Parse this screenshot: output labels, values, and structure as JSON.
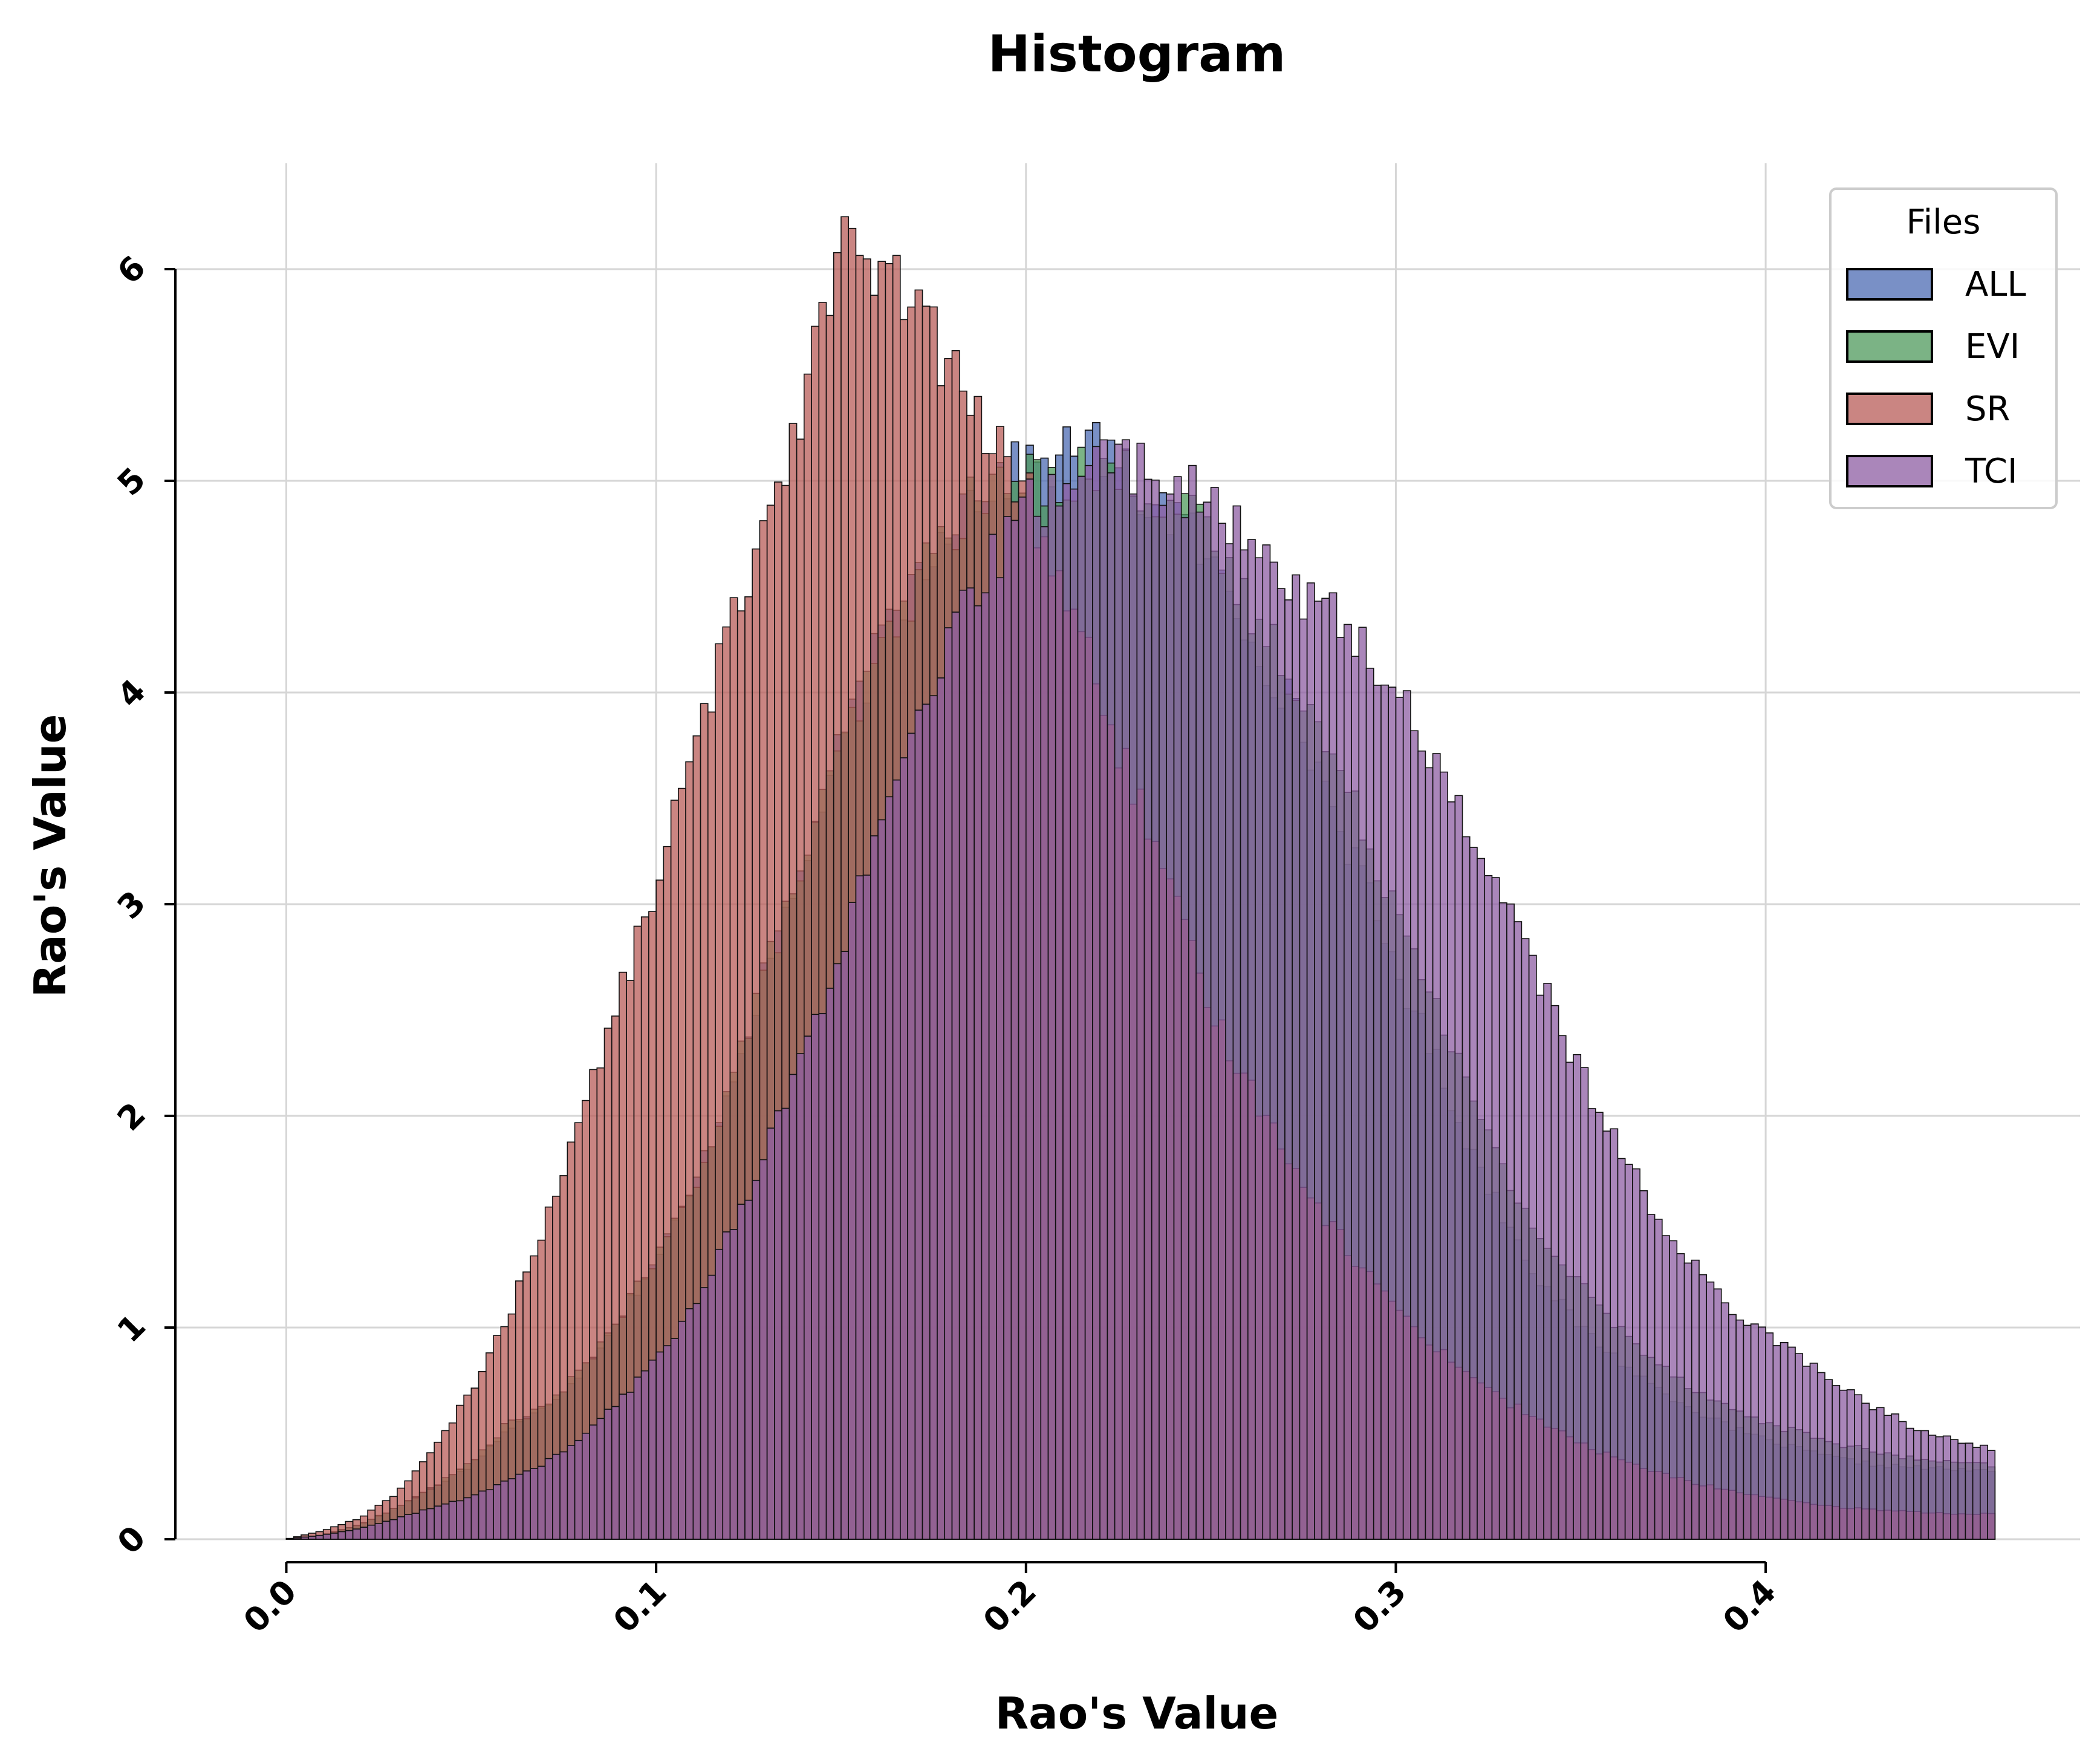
{
  "chart_data": {
    "type": "bar",
    "title": "Histogram",
    "xlabel": "Rao's Value",
    "ylabel": "Rao's Value",
    "xlim": [
      -0.03,
      0.485
    ],
    "ylim": [
      0,
      6.5
    ],
    "xticks": [
      0.0,
      0.1,
      0.2,
      0.3,
      0.4
    ],
    "xtick_labels": [
      "0.0",
      "0.1",
      "0.2",
      "0.3",
      "0.4"
    ],
    "yticks": [
      0,
      1,
      2,
      3,
      4,
      5,
      6
    ],
    "ytick_labels": [
      "0",
      "1",
      "2",
      "3",
      "4",
      "5",
      "6"
    ],
    "grid": true,
    "legend": {
      "title": "Files",
      "placement": "upper right",
      "entries": [
        "ALL",
        "EVI",
        "SR",
        "TCI"
      ]
    },
    "bin_width": 0.002,
    "x_start": 0.0,
    "x_end": 0.462,
    "series": [
      {
        "name": "ALL",
        "color": "#4c6bb3",
        "opacity": 0.75,
        "description": "approx. histogram density",
        "anchors": [
          [
            0.0,
            0.0
          ],
          [
            0.01,
            0.02
          ],
          [
            0.02,
            0.07
          ],
          [
            0.03,
            0.15
          ],
          [
            0.04,
            0.25
          ],
          [
            0.05,
            0.35
          ],
          [
            0.06,
            0.52
          ],
          [
            0.07,
            0.62
          ],
          [
            0.08,
            0.8
          ],
          [
            0.09,
            1.05
          ],
          [
            0.1,
            1.32
          ],
          [
            0.11,
            1.65
          ],
          [
            0.12,
            2.15
          ],
          [
            0.13,
            2.7
          ],
          [
            0.14,
            3.2
          ],
          [
            0.15,
            3.75
          ],
          [
            0.16,
            4.2
          ],
          [
            0.17,
            4.55
          ],
          [
            0.18,
            4.85
          ],
          [
            0.19,
            5.0
          ],
          [
            0.2,
            5.05
          ],
          [
            0.21,
            5.12
          ],
          [
            0.22,
            5.15
          ],
          [
            0.23,
            4.95
          ],
          [
            0.24,
            4.85
          ],
          [
            0.25,
            4.6
          ],
          [
            0.26,
            4.3
          ],
          [
            0.27,
            4.0
          ],
          [
            0.28,
            3.6
          ],
          [
            0.29,
            3.15
          ],
          [
            0.3,
            2.7
          ],
          [
            0.31,
            2.3
          ],
          [
            0.32,
            1.85
          ],
          [
            0.33,
            1.5
          ],
          [
            0.34,
            1.2
          ],
          [
            0.35,
            1.0
          ],
          [
            0.36,
            0.85
          ],
          [
            0.37,
            0.72
          ],
          [
            0.38,
            0.62
          ],
          [
            0.39,
            0.53
          ],
          [
            0.4,
            0.47
          ],
          [
            0.41,
            0.42
          ],
          [
            0.42,
            0.38
          ],
          [
            0.43,
            0.35
          ],
          [
            0.44,
            0.34
          ],
          [
            0.45,
            0.33
          ],
          [
            0.462,
            0.32
          ]
        ]
      },
      {
        "name": "EVI",
        "color": "#4f9a5c",
        "opacity": 0.75,
        "description": "approx. histogram density",
        "anchors": [
          [
            0.0,
            0.0
          ],
          [
            0.01,
            0.02
          ],
          [
            0.02,
            0.07
          ],
          [
            0.03,
            0.15
          ],
          [
            0.04,
            0.25
          ],
          [
            0.05,
            0.36
          ],
          [
            0.06,
            0.55
          ],
          [
            0.07,
            0.62
          ],
          [
            0.08,
            0.8
          ],
          [
            0.09,
            1.05
          ],
          [
            0.1,
            1.32
          ],
          [
            0.11,
            1.65
          ],
          [
            0.12,
            2.15
          ],
          [
            0.13,
            2.7
          ],
          [
            0.14,
            3.2
          ],
          [
            0.15,
            3.72
          ],
          [
            0.16,
            4.15
          ],
          [
            0.17,
            4.5
          ],
          [
            0.18,
            4.8
          ],
          [
            0.19,
            4.95
          ],
          [
            0.2,
            5.0
          ],
          [
            0.21,
            5.03
          ],
          [
            0.22,
            5.05
          ],
          [
            0.23,
            5.0
          ],
          [
            0.24,
            4.9
          ],
          [
            0.25,
            4.7
          ],
          [
            0.26,
            4.4
          ],
          [
            0.27,
            4.15
          ],
          [
            0.28,
            3.8
          ],
          [
            0.29,
            3.4
          ],
          [
            0.3,
            3.0
          ],
          [
            0.31,
            2.6
          ],
          [
            0.32,
            2.1
          ],
          [
            0.33,
            1.7
          ],
          [
            0.34,
            1.4
          ],
          [
            0.35,
            1.2
          ],
          [
            0.36,
            1.0
          ],
          [
            0.37,
            0.85
          ],
          [
            0.38,
            0.72
          ],
          [
            0.39,
            0.62
          ],
          [
            0.4,
            0.55
          ],
          [
            0.41,
            0.5
          ],
          [
            0.42,
            0.45
          ],
          [
            0.43,
            0.41
          ],
          [
            0.44,
            0.38
          ],
          [
            0.45,
            0.36
          ],
          [
            0.462,
            0.35
          ]
        ]
      },
      {
        "name": "SR",
        "color": "#b85c58",
        "opacity": 0.75,
        "description": "approx. histogram density",
        "anchors": [
          [
            0.0,
            0.0
          ],
          [
            0.01,
            0.04
          ],
          [
            0.02,
            0.1
          ],
          [
            0.03,
            0.22
          ],
          [
            0.04,
            0.42
          ],
          [
            0.05,
            0.7
          ],
          [
            0.06,
            1.05
          ],
          [
            0.07,
            1.5
          ],
          [
            0.08,
            2.0
          ],
          [
            0.09,
            2.55
          ],
          [
            0.1,
            3.1
          ],
          [
            0.11,
            3.7
          ],
          [
            0.12,
            4.3
          ],
          [
            0.13,
            4.85
          ],
          [
            0.14,
            5.4
          ],
          [
            0.145,
            5.85
          ],
          [
            0.15,
            6.12
          ],
          [
            0.16,
            5.95
          ],
          [
            0.17,
            5.85
          ],
          [
            0.18,
            5.5
          ],
          [
            0.19,
            5.2
          ],
          [
            0.2,
            4.95
          ],
          [
            0.21,
            4.5
          ],
          [
            0.22,
            4.0
          ],
          [
            0.23,
            3.5
          ],
          [
            0.24,
            3.0
          ],
          [
            0.25,
            2.5
          ],
          [
            0.26,
            2.15
          ],
          [
            0.27,
            1.85
          ],
          [
            0.28,
            1.55
          ],
          [
            0.29,
            1.3
          ],
          [
            0.3,
            1.1
          ],
          [
            0.31,
            0.92
          ],
          [
            0.32,
            0.78
          ],
          [
            0.33,
            0.65
          ],
          [
            0.34,
            0.55
          ],
          [
            0.35,
            0.45
          ],
          [
            0.36,
            0.38
          ],
          [
            0.37,
            0.32
          ],
          [
            0.38,
            0.27
          ],
          [
            0.39,
            0.23
          ],
          [
            0.4,
            0.2
          ],
          [
            0.41,
            0.17
          ],
          [
            0.42,
            0.15
          ],
          [
            0.43,
            0.14
          ],
          [
            0.44,
            0.13
          ],
          [
            0.45,
            0.12
          ],
          [
            0.462,
            0.12
          ]
        ]
      },
      {
        "name": "TCI",
        "color": "#8e5ea3",
        "opacity": 0.75,
        "description": "approx. histogram density",
        "anchors": [
          [
            0.0,
            0.0
          ],
          [
            0.01,
            0.02
          ],
          [
            0.02,
            0.05
          ],
          [
            0.03,
            0.1
          ],
          [
            0.04,
            0.15
          ],
          [
            0.05,
            0.2
          ],
          [
            0.06,
            0.28
          ],
          [
            0.07,
            0.36
          ],
          [
            0.08,
            0.48
          ],
          [
            0.09,
            0.65
          ],
          [
            0.1,
            0.85
          ],
          [
            0.11,
            1.1
          ],
          [
            0.12,
            1.45
          ],
          [
            0.13,
            1.85
          ],
          [
            0.14,
            2.3
          ],
          [
            0.15,
            2.8
          ],
          [
            0.16,
            3.3
          ],
          [
            0.17,
            3.8
          ],
          [
            0.18,
            4.25
          ],
          [
            0.19,
            4.6
          ],
          [
            0.2,
            4.85
          ],
          [
            0.21,
            5.0
          ],
          [
            0.22,
            5.1
          ],
          [
            0.23,
            5.08
          ],
          [
            0.24,
            5.0
          ],
          [
            0.25,
            4.85
          ],
          [
            0.26,
            4.7
          ],
          [
            0.27,
            4.55
          ],
          [
            0.28,
            4.4
          ],
          [
            0.29,
            4.25
          ],
          [
            0.3,
            4.0
          ],
          [
            0.31,
            3.7
          ],
          [
            0.32,
            3.35
          ],
          [
            0.33,
            3.0
          ],
          [
            0.34,
            2.6
          ],
          [
            0.35,
            2.2
          ],
          [
            0.36,
            1.85
          ],
          [
            0.37,
            1.55
          ],
          [
            0.38,
            1.3
          ],
          [
            0.39,
            1.1
          ],
          [
            0.4,
            0.98
          ],
          [
            0.41,
            0.85
          ],
          [
            0.42,
            0.72
          ],
          [
            0.43,
            0.62
          ],
          [
            0.44,
            0.53
          ],
          [
            0.45,
            0.47
          ],
          [
            0.462,
            0.42
          ]
        ]
      }
    ]
  }
}
